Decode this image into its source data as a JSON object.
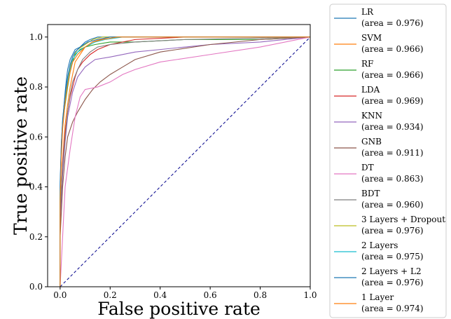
{
  "chart_data": {
    "type": "line",
    "title": "",
    "xlabel": "False positive rate",
    "ylabel": "True positive rate",
    "xlim": [
      -0.05,
      1.0
    ],
    "ylim": [
      0.0,
      1.05
    ],
    "xticks": [
      "0.0",
      "0.2",
      "0.4",
      "0.6",
      "0.8",
      "1.0"
    ],
    "yticks": [
      "0.0",
      "0.2",
      "0.4",
      "0.6",
      "0.8",
      "1.0"
    ],
    "grid": false,
    "legend_position": "outside-right",
    "chance_line": {
      "x": [
        0,
        1
      ],
      "y": [
        0,
        1
      ],
      "color": "#00008b",
      "style": "dashed"
    },
    "series": [
      {
        "name": "LR",
        "label": "(area = 0.976)",
        "color": "#1f77b4",
        "x": [
          0,
          0,
          0.005,
          0.01,
          0.015,
          0.02,
          0.025,
          0.03,
          0.04,
          0.05,
          0.06,
          0.08,
          0.1,
          0.12,
          0.15,
          0.2,
          0.3,
          0.4,
          0.6,
          1.0
        ],
        "y": [
          0,
          0.42,
          0.58,
          0.66,
          0.72,
          0.78,
          0.83,
          0.87,
          0.91,
          0.93,
          0.95,
          0.96,
          0.98,
          0.99,
          1.0,
          1.0,
          1.0,
          1.0,
          1.0,
          1.0
        ]
      },
      {
        "name": "SVM",
        "label": "(area = 0.966)",
        "color": "#ff7f0e",
        "x": [
          0,
          0,
          0.01,
          0.015,
          0.02,
          0.03,
          0.04,
          0.05,
          0.06,
          0.08,
          0.1,
          0.13,
          0.16,
          0.2,
          0.3,
          0.4,
          0.6,
          1.0
        ],
        "y": [
          0,
          0.3,
          0.5,
          0.58,
          0.65,
          0.73,
          0.8,
          0.85,
          0.9,
          0.93,
          0.96,
          0.98,
          0.99,
          1.0,
          1.0,
          1.0,
          1.0,
          1.0
        ]
      },
      {
        "name": "RF",
        "label": "(area = 0.966)",
        "color": "#2ca02c",
        "x": [
          0,
          0,
          0.005,
          0.01,
          0.02,
          0.03,
          0.04,
          0.05,
          0.06,
          0.08,
          0.1,
          0.14,
          0.2,
          0.3,
          0.5,
          0.8,
          1.0
        ],
        "y": [
          0,
          0.35,
          0.55,
          0.65,
          0.73,
          0.8,
          0.86,
          0.9,
          0.93,
          0.95,
          0.96,
          0.97,
          0.98,
          0.98,
          0.99,
          0.99,
          1.0
        ]
      },
      {
        "name": "LDA",
        "label": "(area = 0.969)",
        "color": "#d62728",
        "x": [
          0,
          0,
          0.01,
          0.02,
          0.03,
          0.04,
          0.05,
          0.06,
          0.07,
          0.09,
          0.12,
          0.15,
          0.2,
          0.3,
          0.5,
          1.0
        ],
        "y": [
          0,
          0.28,
          0.5,
          0.62,
          0.7,
          0.76,
          0.8,
          0.84,
          0.87,
          0.9,
          0.93,
          0.95,
          0.97,
          0.99,
          1.0,
          1.0
        ]
      },
      {
        "name": "KNN",
        "label": "(area = 0.934)",
        "color": "#9467bd",
        "x": [
          0,
          0,
          0.01,
          0.02,
          0.03,
          0.05,
          0.07,
          0.1,
          0.14,
          0.2,
          0.3,
          0.4,
          0.5,
          0.6,
          0.8,
          1.0
        ],
        "y": [
          0,
          0.25,
          0.45,
          0.58,
          0.68,
          0.78,
          0.84,
          0.88,
          0.91,
          0.92,
          0.94,
          0.95,
          0.96,
          0.97,
          0.98,
          1.0
        ]
      },
      {
        "name": "GNB",
        "label": "(area = 0.911)",
        "color": "#8c564b",
        "x": [
          0,
          0,
          0.01,
          0.02,
          0.03,
          0.05,
          0.07,
          0.1,
          0.13,
          0.16,
          0.2,
          0.25,
          0.3,
          0.4,
          0.6,
          0.8,
          1.0
        ],
        "y": [
          0,
          0.2,
          0.4,
          0.52,
          0.6,
          0.66,
          0.7,
          0.75,
          0.79,
          0.82,
          0.85,
          0.88,
          0.91,
          0.94,
          0.97,
          0.99,
          1.0
        ]
      },
      {
        "name": "DT",
        "label": "(area = 0.863)",
        "color": "#e377c2",
        "x": [
          0,
          0.02,
          0.04,
          0.06,
          0.08,
          0.1,
          0.15,
          0.2,
          0.25,
          0.3,
          0.4,
          0.6,
          0.8,
          1.0
        ],
        "y": [
          0,
          0.4,
          0.55,
          0.68,
          0.76,
          0.79,
          0.8,
          0.82,
          0.85,
          0.87,
          0.9,
          0.93,
          0.96,
          1.0
        ]
      },
      {
        "name": "BDT",
        "label": "(area = 0.960)",
        "color": "#7f7f7f",
        "x": [
          0,
          0,
          0.01,
          0.02,
          0.03,
          0.04,
          0.05,
          0.07,
          0.09,
          0.12,
          0.15,
          0.2,
          0.3,
          0.5,
          1.0
        ],
        "y": [
          0,
          0.3,
          0.48,
          0.6,
          0.7,
          0.77,
          0.82,
          0.87,
          0.91,
          0.94,
          0.96,
          0.97,
          0.98,
          0.99,
          1.0
        ]
      },
      {
        "name": "3 Layers + Dropout",
        "label": "(area = 0.976)",
        "color": "#bcbd22",
        "x": [
          0,
          0,
          0.005,
          0.01,
          0.02,
          0.03,
          0.04,
          0.05,
          0.07,
          0.1,
          0.13,
          0.17,
          0.22,
          0.3,
          0.5,
          1.0
        ],
        "y": [
          0,
          0.38,
          0.56,
          0.66,
          0.76,
          0.83,
          0.88,
          0.92,
          0.95,
          0.97,
          0.99,
          1.0,
          1.0,
          1.0,
          1.0,
          1.0
        ]
      },
      {
        "name": "2 Layers",
        "label": "(area = 0.975)",
        "color": "#17becf",
        "x": [
          0,
          0,
          0.005,
          0.01,
          0.02,
          0.03,
          0.04,
          0.05,
          0.07,
          0.1,
          0.14,
          0.18,
          0.25,
          0.4,
          1.0
        ],
        "y": [
          0,
          0.36,
          0.55,
          0.65,
          0.75,
          0.82,
          0.87,
          0.91,
          0.94,
          0.96,
          0.98,
          0.99,
          1.0,
          1.0,
          1.0
        ]
      },
      {
        "name": "2 Layers + L2",
        "label": "(area = 0.976)",
        "color": "#1f77b4",
        "x": [
          0,
          0,
          0.005,
          0.01,
          0.02,
          0.03,
          0.04,
          0.05,
          0.06,
          0.08,
          0.11,
          0.15,
          0.2,
          0.35,
          1.0
        ],
        "y": [
          0,
          0.4,
          0.57,
          0.67,
          0.77,
          0.84,
          0.89,
          0.92,
          0.94,
          0.96,
          0.98,
          0.99,
          1.0,
          1.0,
          1.0
        ]
      },
      {
        "name": "1 Layer",
        "label": "(area = 0.974)",
        "color": "#ff7f0e",
        "x": [
          0,
          0,
          0.005,
          0.01,
          0.02,
          0.03,
          0.04,
          0.05,
          0.07,
          0.1,
          0.13,
          0.17,
          0.23,
          0.38,
          1.0
        ],
        "y": [
          0,
          0.34,
          0.52,
          0.63,
          0.74,
          0.81,
          0.86,
          0.9,
          0.93,
          0.96,
          0.98,
          0.99,
          1.0,
          1.0,
          1.0
        ]
      }
    ]
  }
}
